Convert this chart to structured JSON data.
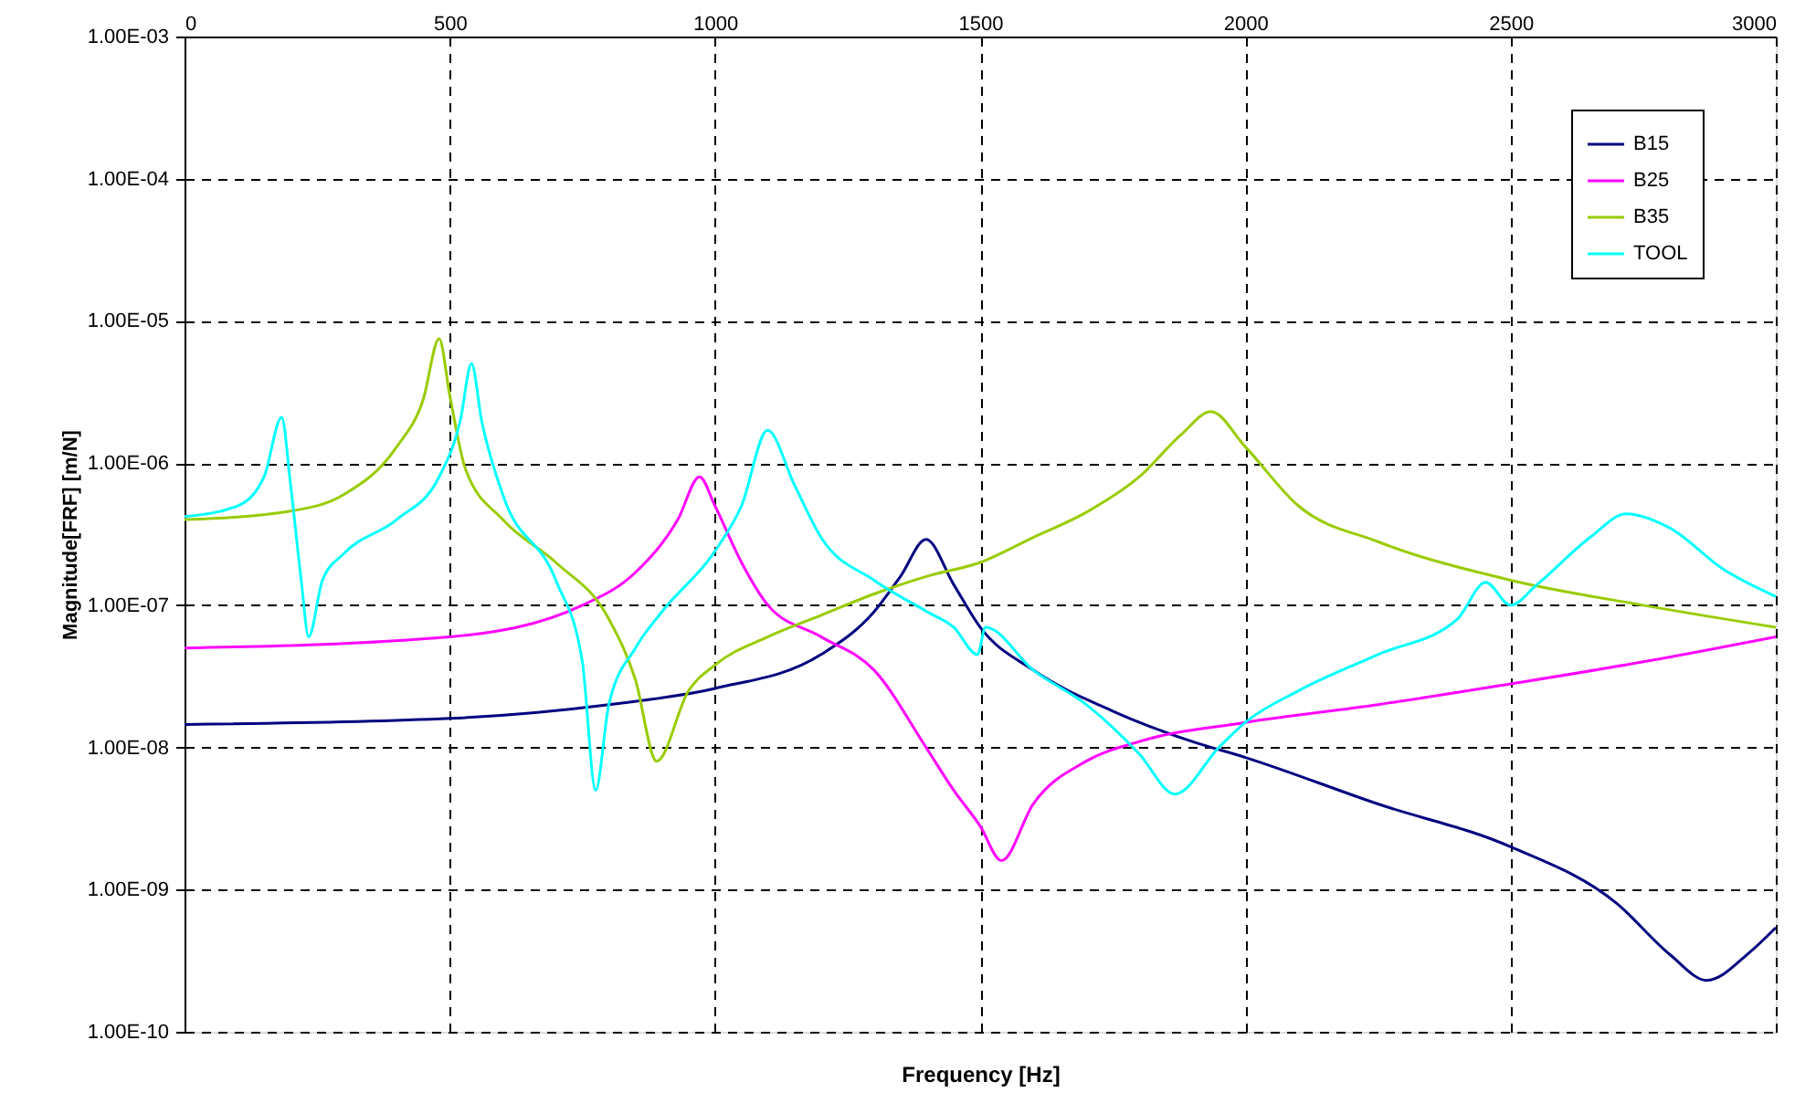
{
  "chart_data": {
    "type": "line",
    "xlabel": "Frequency [Hz]",
    "ylabel": "Magnitude[FRF] [m/N]",
    "xlim": [
      0,
      3000
    ],
    "xticks": [
      0,
      500,
      1000,
      1500,
      2000,
      2500,
      3000
    ],
    "ylim": [
      1e-10,
      0.001
    ],
    "log": "y",
    "yticks": [
      {
        "value": 1e-10,
        "label": "1.00E-10"
      },
      {
        "value": 1e-09,
        "label": "1.00E-09"
      },
      {
        "value": 1e-08,
        "label": "1.00E-08"
      },
      {
        "value": 1e-07,
        "label": "1.00E-07"
      },
      {
        "value": 1e-06,
        "label": "1.00E-06"
      },
      {
        "value": 1e-05,
        "label": "1.00E-05"
      },
      {
        "value": 0.0001,
        "label": "1.00E-04"
      },
      {
        "value": 0.001,
        "label": "1.00E-03"
      }
    ],
    "grid": true,
    "legend": "top right",
    "marker": "none",
    "line_style": "solid",
    "series": [
      {
        "name": "B15",
        "color": "#000080",
        "x": [
          0,
          500,
          800,
          1000,
          1200,
          1300,
          1350,
          1398,
          1450,
          1500,
          1600,
          1750,
          1900,
          2000,
          2250,
          2500,
          2700,
          2800,
          2870,
          2950,
          3000
        ],
        "values": [
          1.45e-08,
          1.6e-08,
          2e-08,
          2.6e-08,
          4.5e-08,
          9e-08,
          1.6e-07,
          2.9e-07,
          1.4e-07,
          7e-08,
          3.5e-08,
          1.8e-08,
          1.1e-08,
          8.5e-09,
          4e-09,
          2e-09,
          8e-10,
          3.5e-10,
          2.3e-10,
          3.6e-10,
          5.4e-10
        ]
      },
      {
        "name": "B25",
        "color": "#ff00ff",
        "x": [
          0,
          500,
          750,
          850,
          930,
          971,
          1000,
          1050,
          1100,
          1200,
          1300,
          1398,
          1450,
          1500,
          1540,
          1600,
          1700,
          1800,
          2000,
          2250,
          2500,
          2750,
          3000
        ],
        "values": [
          5e-08,
          6e-08,
          1e-07,
          1.7e-07,
          4e-07,
          8e-07,
          5e-07,
          2e-07,
          1e-07,
          6e-08,
          3.5e-08,
          1e-08,
          5e-09,
          2.8e-09,
          1.6e-09,
          4e-09,
          8e-09,
          1.1e-08,
          1.5e-08,
          2e-08,
          2.8e-08,
          4e-08,
          6e-08
        ]
      },
      {
        "name": "B35",
        "color": "#99cc00",
        "x": [
          0,
          200,
          300,
          400,
          450,
          480,
          500,
          530,
          600,
          700,
          800,
          850,
          890,
          950,
          1000,
          1100,
          1200,
          1300,
          1400,
          1500,
          1600,
          1700,
          1800,
          1880,
          1935,
          2000,
          2100,
          2250,
          2500,
          2750,
          3000
        ],
        "values": [
          4e-07,
          4.6e-07,
          6e-07,
          1.3e-06,
          2.8e-06,
          7.5e-06,
          3e-06,
          9e-07,
          4e-07,
          2e-07,
          8e-08,
          3e-08,
          8e-09,
          2.5e-08,
          3.8e-08,
          6e-08,
          8.5e-08,
          1.2e-07,
          1.6e-07,
          2e-07,
          3e-07,
          4.5e-07,
          8e-07,
          1.6e-06,
          2.3e-06,
          1.3e-06,
          5e-07,
          2.8e-07,
          1.5e-07,
          1e-07,
          7e-08
        ]
      },
      {
        "name": "TOOL",
        "color": "#00ffff",
        "x": [
          0,
          100,
          150,
          183,
          200,
          220,
          234,
          260,
          300,
          400,
          480,
          520,
          541,
          560,
          600,
          700,
          750,
          775,
          800,
          850,
          900,
          1000,
          1050,
          1099,
          1150,
          1200,
          1300,
          1400,
          1450,
          1495,
          1510,
          1600,
          1700,
          1800,
          1867,
          1950,
          2000,
          2100,
          2250,
          2400,
          2453,
          2500,
          2550,
          2650,
          2718,
          2800,
          2900,
          3000
        ],
        "values": [
          4.2e-07,
          5e-07,
          8e-07,
          2.1e-06,
          7e-07,
          1.5e-07,
          6e-08,
          1.5e-07,
          2.3e-07,
          4e-07,
          8e-07,
          2e-06,
          5e-06,
          2e-06,
          6e-07,
          1.5e-07,
          4e-08,
          5e-09,
          2e-08,
          5e-08,
          9e-08,
          2.4e-07,
          5e-07,
          1.7e-06,
          7e-07,
          3e-07,
          1.5e-07,
          9e-08,
          7e-08,
          4.5e-08,
          7e-08,
          3.5e-08,
          2e-08,
          9e-09,
          4.7e-09,
          1e-08,
          1.5e-08,
          2.5e-08,
          4.5e-08,
          8e-08,
          1.45e-07,
          1e-07,
          1.4e-07,
          3e-07,
          4.4e-07,
          3.5e-07,
          1.8e-07,
          1.15e-07
        ]
      }
    ]
  }
}
